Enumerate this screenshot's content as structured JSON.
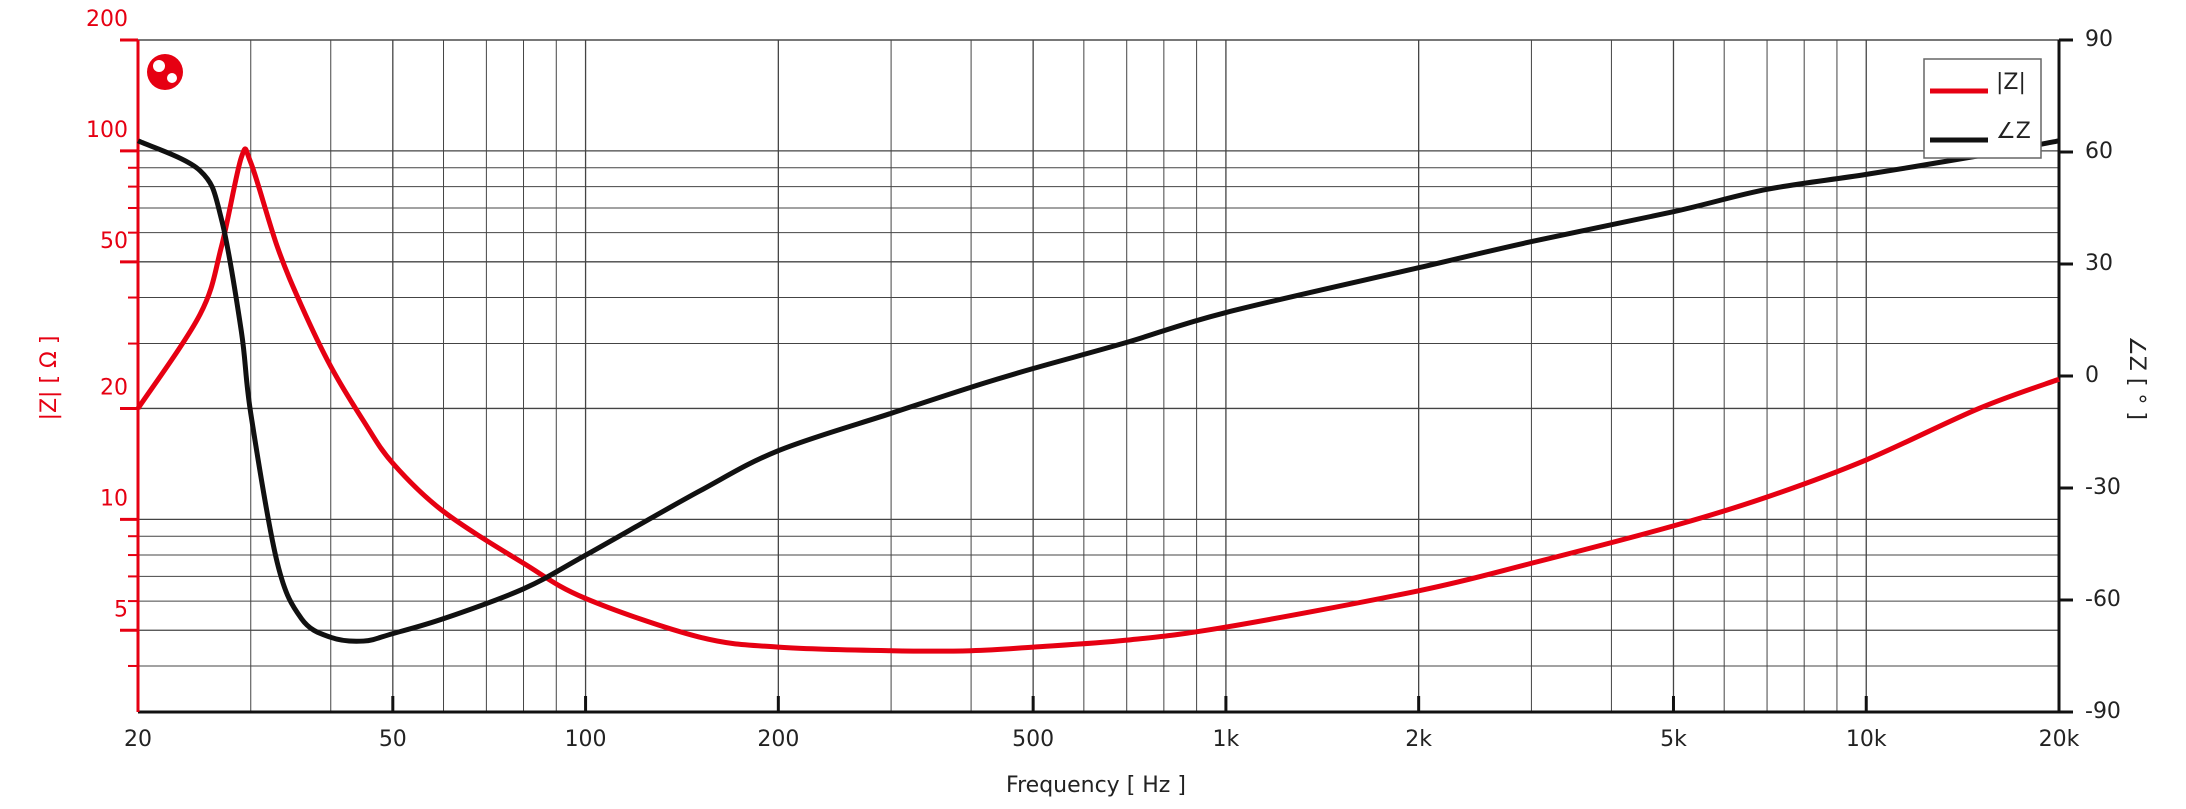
{
  "chart_data": {
    "type": "line",
    "x_label": "Frequency [ Hz ]",
    "y_label": "|Z| [ Ω ]",
    "y2_label": "∠Z [ ° ]",
    "x": [
      20,
      25,
      27,
      29,
      30,
      33,
      36,
      40,
      45,
      50,
      60,
      80,
      100,
      150,
      200,
      300,
      400,
      500,
      700,
      1000,
      2000,
      3000,
      5000,
      7000,
      10000,
      15000,
      20000
    ],
    "series": [
      {
        "name": "|Z|",
        "color": "#e60012",
        "axis": "y",
        "values": [
          20,
          36,
          55,
          96,
          93,
          55,
          38,
          26,
          18.5,
          14.2,
          10.5,
          7.6,
          6.1,
          4.8,
          4.5,
          4.4,
          4.4,
          4.5,
          4.7,
          5.1,
          6.4,
          7.6,
          9.6,
          11.5,
          14.5,
          20,
          24
        ]
      },
      {
        "name": "∠Z",
        "color": "#111111",
        "axis": "y2",
        "values": [
          63,
          55,
          42,
          12,
          -10,
          -50,
          -65,
          -70,
          -71,
          -69,
          -65,
          -57,
          -48,
          -31,
          -20,
          -10,
          -3,
          2,
          9,
          17,
          29,
          36,
          44,
          50,
          54,
          59,
          63
        ]
      }
    ],
    "x_log": true,
    "y_log": true,
    "xlim": [
      20,
      20000
    ],
    "ylim": [
      3,
      200
    ],
    "y2lim": [
      -90,
      90
    ],
    "xticks": [
      20,
      50,
      100,
      200,
      500,
      {
        "value": 1000,
        "label": "1k"
      },
      {
        "value": 2000,
        "label": "2k"
      },
      {
        "value": 5000,
        "label": "5k"
      },
      {
        "value": 10000,
        "label": "10k"
      },
      {
        "value": 20000,
        "label": "20k"
      }
    ],
    "yticks": [
      5,
      10,
      20,
      50,
      100,
      200
    ],
    "y2ticks": [
      -90,
      -60,
      -30,
      0,
      30,
      60,
      90
    ],
    "x_minor_grid": [
      30,
      40,
      60,
      70,
      80,
      90,
      300,
      400,
      600,
      700,
      800,
      900,
      3000,
      4000,
      6000,
      7000,
      8000,
      9000
    ],
    "y_minor_grid": [
      4,
      6,
      7,
      8,
      9,
      30,
      40,
      60,
      70,
      80,
      90
    ],
    "grid": true,
    "legend": "upper right"
  }
}
